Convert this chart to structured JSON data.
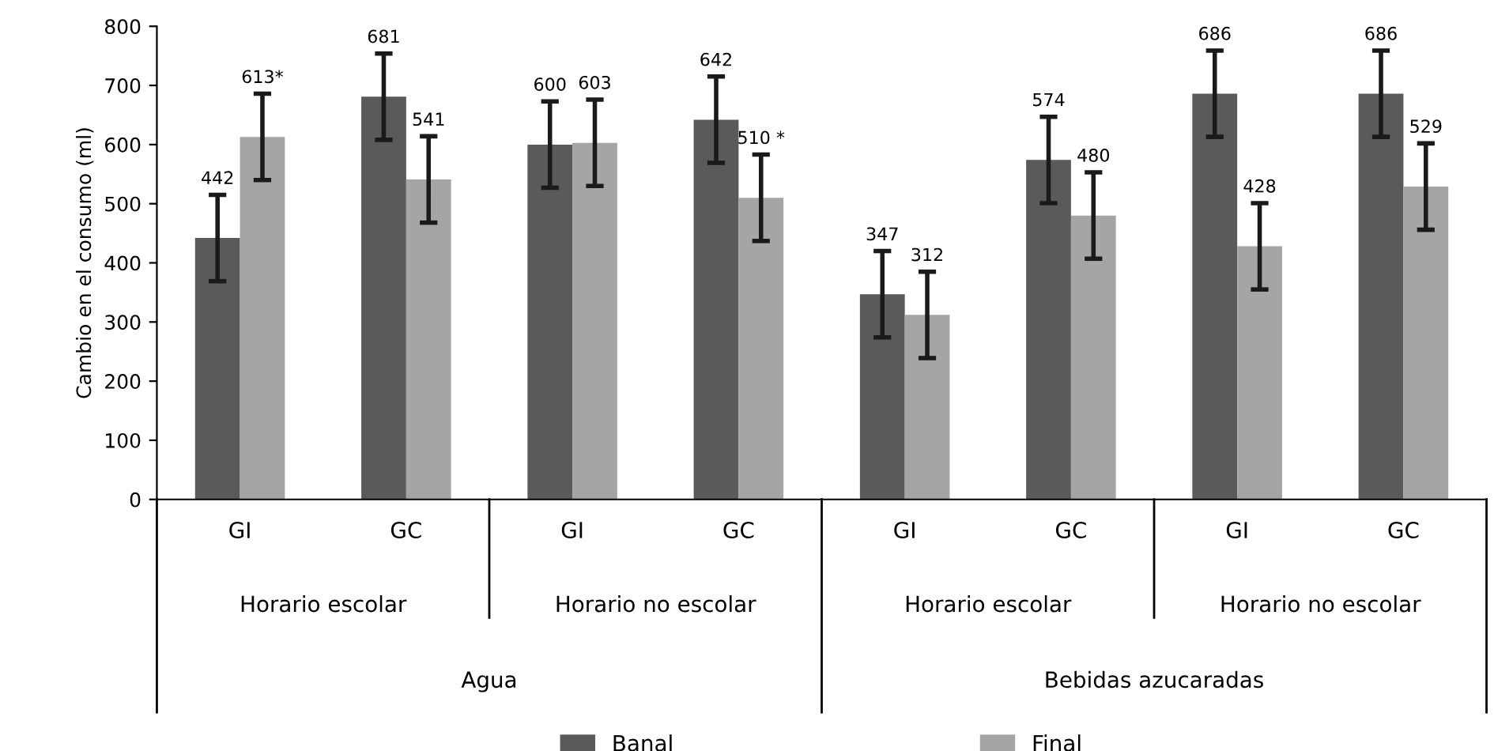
{
  "chart_data": {
    "type": "bar",
    "ylabel": "Cambio en el consumo (ml)",
    "categories": [
      "GI",
      "GC",
      "GI",
      "GC",
      "GI",
      "GC",
      "GI",
      "GC"
    ],
    "series": [
      {
        "name": "Banal",
        "color": "#5a5a5a",
        "values": [
          442,
          681,
          600,
          642,
          347,
          574,
          686,
          686
        ],
        "errors": [
          73,
          73,
          73,
          73,
          73,
          73,
          73,
          73
        ],
        "value_labels": [
          "442",
          "681",
          "600",
          "642",
          "347",
          "574",
          "686",
          "686"
        ]
      },
      {
        "name": "Final",
        "color": "#a5a5a5",
        "values": [
          613,
          541,
          603,
          510,
          312,
          480,
          428,
          529
        ],
        "errors": [
          73,
          73,
          73,
          73,
          73,
          73,
          73,
          73
        ],
        "value_labels": [
          "613*",
          "541",
          "603",
          "510 *",
          "312",
          "480",
          "428",
          "529"
        ]
      }
    ],
    "annotations": [
      "Horario escolar",
      "Horario no escolar",
      "Horario escolar",
      "Horario no escolar",
      "Agua",
      "Bebidas azucaradas"
    ],
    "ylim": [
      0,
      800
    ],
    "yticks": [
      0,
      100,
      200,
      300,
      400,
      500,
      600,
      700,
      800
    ],
    "grid": false,
    "legend": "bottom"
  }
}
